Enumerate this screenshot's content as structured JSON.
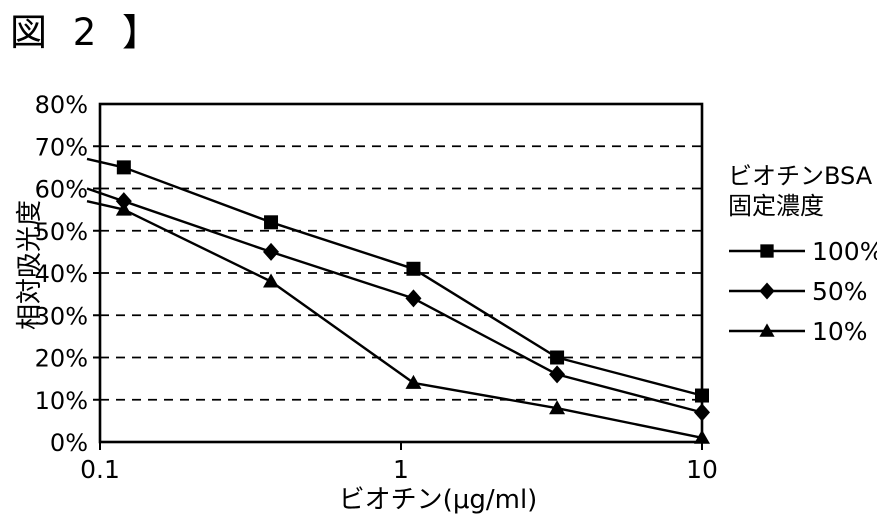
{
  "page": {
    "title": "図 2 】",
    "background": "#ffffff",
    "ink": "#000000"
  },
  "chart_data": {
    "type": "line",
    "title": "図 2 】",
    "xlabel": "ビオチン(μg/ml)",
    "ylabel": "相対吸光度",
    "x_scale": "log",
    "xlim": [
      0.1,
      10
    ],
    "ylim": [
      0,
      80
    ],
    "grid": "horizontal dashed gridlines every 10%",
    "x": [
      0.12,
      0.37,
      1.1,
      3.3,
      10
    ],
    "x_ticks": [
      {
        "value": 0.1,
        "label": "0.1"
      },
      {
        "value": 1,
        "label": "1"
      },
      {
        "value": 10,
        "label": "10"
      }
    ],
    "y_ticks": [
      {
        "value": 0,
        "label": "0%"
      },
      {
        "value": 10,
        "label": "10%"
      },
      {
        "value": 20,
        "label": "20%"
      },
      {
        "value": 30,
        "label": "30%"
      },
      {
        "value": 40,
        "label": "40%"
      },
      {
        "value": 50,
        "label": "50%"
      },
      {
        "value": 60,
        "label": "60%"
      },
      {
        "value": 70,
        "label": "70%"
      },
      {
        "value": 80,
        "label": "80%"
      }
    ],
    "legend": {
      "position": "right",
      "title_lines": [
        "ビオチンBSA",
        "固定濃度"
      ]
    },
    "series": [
      {
        "name": "100%",
        "marker": "square",
        "values": [
          65,
          52,
          41,
          20,
          11
        ],
        "left_edge_value": 67
      },
      {
        "name": "50%",
        "marker": "diamond",
        "values": [
          57,
          45,
          34,
          16,
          7
        ],
        "left_edge_value": 60
      },
      {
        "name": "10%",
        "marker": "triangle",
        "values": [
          55,
          38,
          14,
          8,
          1
        ],
        "left_edge_value": 57
      }
    ],
    "colors": {
      "line": "#000000",
      "grid": "#000000",
      "background": "#ffffff"
    }
  }
}
